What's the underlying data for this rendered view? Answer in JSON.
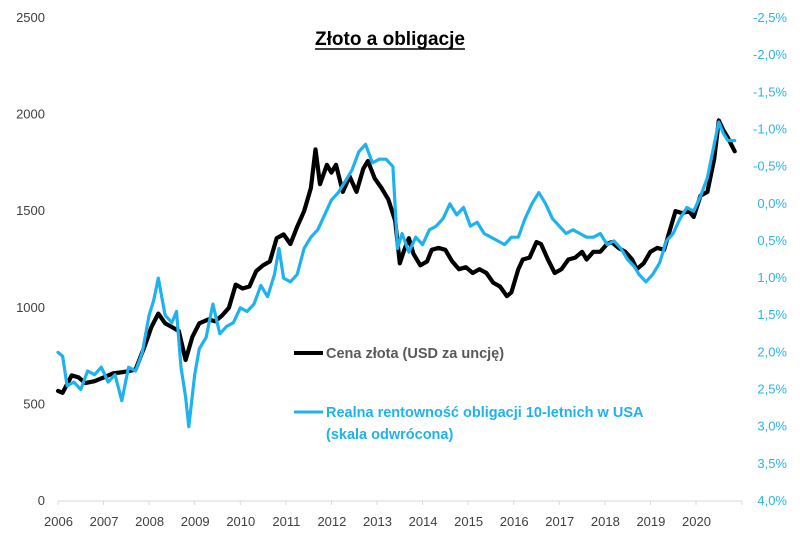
{
  "chart_data": {
    "type": "line",
    "title": "Złoto a obligacje",
    "xlabel": "",
    "ylabel": "",
    "x_ticks": [
      "2006",
      "2007",
      "2008",
      "2009",
      "2010",
      "2011",
      "2012",
      "2013",
      "2014",
      "2015",
      "2016",
      "2017",
      "2018",
      "2019",
      "2020"
    ],
    "x_range": [
      2006,
      2021
    ],
    "grid": false,
    "legend_position": "center",
    "left_axis": {
      "range": [
        0,
        2500
      ],
      "ticks": [
        0,
        500,
        1000,
        1500,
        2000,
        2500
      ],
      "tick_labels": [
        "0",
        "500",
        "1000",
        "1500",
        "2000",
        "2500"
      ],
      "color": "#404040"
    },
    "right_axis": {
      "range": [
        -2.5,
        4.0
      ],
      "inverted": true,
      "ticks": [
        -2.5,
        -2.0,
        -1.5,
        -1.0,
        -0.5,
        0.0,
        0.5,
        1.0,
        1.5,
        2.0,
        2.5,
        3.0,
        3.5,
        4.0
      ],
      "tick_labels": [
        "-2,5%",
        "-2,0%",
        "-1,5%",
        "-1,0%",
        "-0,5%",
        "0,0%",
        "0,5%",
        "1,0%",
        "1,5%",
        "2,0%",
        "2,5%",
        "3,0%",
        "3,5%",
        "4,0%"
      ],
      "color": "#2ab4e8"
    },
    "series": [
      {
        "name": "Cena złota (USD za uncję)",
        "axis": "left",
        "color": "#000000",
        "x": [
          2006.0,
          2006.1,
          2006.3,
          2006.45,
          2006.6,
          2006.8,
          2007.0,
          2007.2,
          2007.5,
          2007.7,
          2007.9,
          2008.05,
          2008.2,
          2008.35,
          2008.5,
          2008.65,
          2008.8,
          2008.95,
          2009.1,
          2009.3,
          2009.45,
          2009.6,
          2009.75,
          2009.9,
          2010.05,
          2010.2,
          2010.35,
          2010.5,
          2010.65,
          2010.8,
          2010.95,
          2011.1,
          2011.25,
          2011.4,
          2011.55,
          2011.65,
          2011.75,
          2011.9,
          2012.0,
          2012.1,
          2012.25,
          2012.4,
          2012.55,
          2012.7,
          2012.8,
          2012.95,
          2013.1,
          2013.25,
          2013.4,
          2013.5,
          2013.6,
          2013.7,
          2013.8,
          2013.95,
          2014.1,
          2014.2,
          2014.35,
          2014.5,
          2014.65,
          2014.8,
          2014.95,
          2015.1,
          2015.25,
          2015.4,
          2015.55,
          2015.7,
          2015.85,
          2015.95,
          2016.1,
          2016.2,
          2016.35,
          2016.5,
          2016.6,
          2016.75,
          2016.9,
          2017.05,
          2017.2,
          2017.35,
          2017.5,
          2017.6,
          2017.75,
          2017.9,
          2018.05,
          2018.15,
          2018.3,
          2018.45,
          2018.6,
          2018.7,
          2018.85,
          2019.0,
          2019.15,
          2019.3,
          2019.45,
          2019.55,
          2019.7,
          2019.85,
          2019.95,
          2020.1,
          2020.25,
          2020.4,
          2020.5,
          2020.6,
          2020.7,
          2020.85
        ],
        "values": [
          570,
          560,
          650,
          640,
          610,
          620,
          640,
          660,
          670,
          680,
          800,
          900,
          970,
          920,
          900,
          880,
          730,
          850,
          920,
          940,
          930,
          960,
          1000,
          1120,
          1100,
          1110,
          1190,
          1220,
          1240,
          1360,
          1380,
          1330,
          1420,
          1500,
          1620,
          1820,
          1640,
          1740,
          1700,
          1740,
          1600,
          1680,
          1600,
          1720,
          1760,
          1670,
          1620,
          1560,
          1450,
          1230,
          1300,
          1360,
          1280,
          1220,
          1240,
          1300,
          1310,
          1300,
          1240,
          1200,
          1210,
          1180,
          1200,
          1180,
          1130,
          1110,
          1060,
          1080,
          1200,
          1250,
          1260,
          1340,
          1330,
          1250,
          1180,
          1200,
          1250,
          1260,
          1290,
          1250,
          1290,
          1290,
          1330,
          1340,
          1310,
          1290,
          1250,
          1200,
          1230,
          1290,
          1310,
          1300,
          1420,
          1500,
          1490,
          1500,
          1470,
          1580,
          1600,
          1770,
          1970,
          1920,
          1880,
          1810
        ]
      },
      {
        "name": "Realna rentowność obligacji 10-letnich w USA (skala odwrócona)",
        "axis": "right",
        "color": "#1fb2ee",
        "x": [
          2006.0,
          2006.1,
          2006.2,
          2006.35,
          2006.5,
          2006.65,
          2006.8,
          2006.95,
          2007.1,
          2007.25,
          2007.4,
          2007.55,
          2007.7,
          2007.85,
          2008.0,
          2008.1,
          2008.2,
          2008.35,
          2008.5,
          2008.6,
          2008.7,
          2008.8,
          2008.87,
          2009.0,
          2009.1,
          2009.25,
          2009.4,
          2009.55,
          2009.7,
          2009.85,
          2010.0,
          2010.15,
          2010.3,
          2010.45,
          2010.6,
          2010.75,
          2010.85,
          2010.95,
          2011.1,
          2011.25,
          2011.4,
          2011.55,
          2011.7,
          2011.85,
          2012.0,
          2012.15,
          2012.3,
          2012.45,
          2012.6,
          2012.75,
          2012.9,
          2013.05,
          2013.2,
          2013.35,
          2013.45,
          2013.55,
          2013.7,
          2013.85,
          2014.0,
          2014.15,
          2014.3,
          2014.45,
          2014.6,
          2014.75,
          2014.9,
          2015.05,
          2015.2,
          2015.35,
          2015.5,
          2015.65,
          2015.8,
          2015.95,
          2016.1,
          2016.25,
          2016.4,
          2016.55,
          2016.7,
          2016.85,
          2017.0,
          2017.15,
          2017.3,
          2017.45,
          2017.6,
          2017.75,
          2017.9,
          2018.05,
          2018.2,
          2018.35,
          2018.5,
          2018.65,
          2018.75,
          2018.9,
          2019.05,
          2019.2,
          2019.35,
          2019.5,
          2019.65,
          2019.8,
          2019.95,
          2020.1,
          2020.25,
          2020.4,
          2020.5,
          2020.6,
          2020.7,
          2020.85
        ],
        "values": [
          2.0,
          2.05,
          2.45,
          2.4,
          2.5,
          2.25,
          2.3,
          2.2,
          2.4,
          2.3,
          2.65,
          2.2,
          2.25,
          2.0,
          1.5,
          1.3,
          1.0,
          1.5,
          1.6,
          1.45,
          2.2,
          2.6,
          3.0,
          2.3,
          1.95,
          1.8,
          1.35,
          1.75,
          1.65,
          1.6,
          1.4,
          1.45,
          1.35,
          1.1,
          1.25,
          0.95,
          0.6,
          1.0,
          1.05,
          0.95,
          0.6,
          0.45,
          0.35,
          0.15,
          -0.05,
          -0.15,
          -0.3,
          -0.45,
          -0.7,
          -0.8,
          -0.55,
          -0.6,
          -0.6,
          -0.5,
          0.6,
          0.4,
          0.65,
          0.45,
          0.55,
          0.35,
          0.3,
          0.2,
          0.0,
          0.15,
          0.05,
          0.3,
          0.25,
          0.4,
          0.45,
          0.5,
          0.55,
          0.45,
          0.45,
          0.2,
          0.0,
          -0.15,
          0.0,
          0.2,
          0.3,
          0.4,
          0.35,
          0.4,
          0.45,
          0.45,
          0.4,
          0.55,
          0.5,
          0.6,
          0.75,
          0.85,
          0.95,
          1.05,
          0.95,
          0.8,
          0.5,
          0.4,
          0.2,
          0.05,
          0.1,
          -0.1,
          -0.35,
          -0.8,
          -1.1,
          -0.95,
          -0.85,
          -0.85
        ]
      }
    ],
    "legend": [
      {
        "label": "Cena złota (USD za uncję)",
        "color": "#000000"
      },
      {
        "label_lines": [
          "Realna rentowność obligacji 10-letnich w USA",
          "(skala odwrócona)"
        ],
        "color": "#1fb2ee"
      }
    ]
  }
}
